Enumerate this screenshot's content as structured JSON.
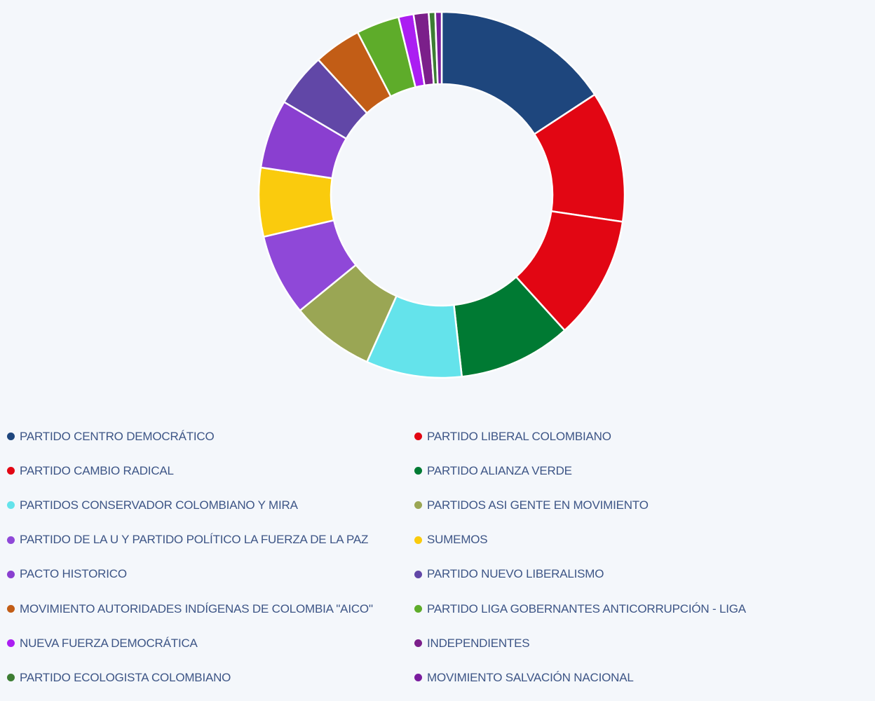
{
  "chart_data": {
    "type": "pie",
    "variant": "donut",
    "legend_position": "bottom",
    "slices": [
      {
        "label": "PARTIDO CENTRO DEMOCRÁTICO",
        "value": 16.6,
        "color": "#1e467d"
      },
      {
        "label": "PARTIDO LIBERAL COLOMBIANO",
        "value": 12.2,
        "color": "#e20613"
      },
      {
        "label": "PARTIDO CAMBIO RADICAL",
        "value": 11.5,
        "color": "#e20613"
      },
      {
        "label": "PARTIDO ALIANZA VERDE",
        "value": 10.5,
        "color": "#007a33"
      },
      {
        "label": "PARTIDOS CONSERVADOR COLOMBIANO Y MIRA",
        "value": 8.9,
        "color": "#64e3eb"
      },
      {
        "label": "PARTIDOS ASI GENTE EN MOVIMIENTO",
        "value": 7.8,
        "color": "#9aa654"
      },
      {
        "label": "PARTIDO DE LA U Y PARTIDO POLÍTICO LA FUERZA DE LA PAZ",
        "value": 7.6,
        "color": "#8f48d8"
      },
      {
        "label": "SUMEMOS",
        "value": 6.4,
        "color": "#facb0d"
      },
      {
        "label": "PACTO HISTORICO",
        "value": 6.4,
        "color": "#8a3fd0"
      },
      {
        "label": "PARTIDO NUEVO LIBERALISMO",
        "value": 5.0,
        "color": "#6147a7"
      },
      {
        "label": "MOVIMIENTO AUTORIDADES INDÍGENAS DE COLOMBIA \"AICO\"",
        "value": 4.4,
        "color": "#c25d16"
      },
      {
        "label": "PARTIDO LIGA GOBERNANTES ANTICORRUPCIÓN - LIGA",
        "value": 4.0,
        "color": "#5eac2a"
      },
      {
        "label": "NUEVA FUERZA DEMOCRÁTICA",
        "value": 1.4,
        "color": "#ab1ef2"
      },
      {
        "label": "INDEPENDIENTES",
        "value": 1.4,
        "color": "#7b1f8a"
      },
      {
        "label": "PARTIDO ECOLOGISTA COLOMBIANO",
        "value": 0.6,
        "color": "#3d7d33"
      },
      {
        "label": "MOVIMIENTO SALVACIÓN NACIONAL",
        "value": 0.6,
        "color": "#7a1c9e"
      }
    ]
  }
}
